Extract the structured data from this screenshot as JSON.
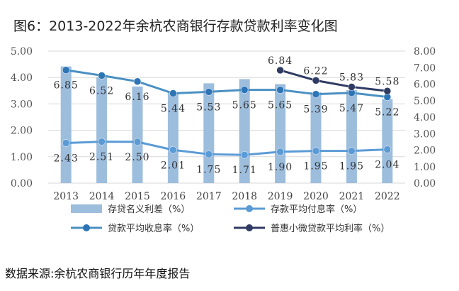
{
  "title": "图6：2013-2022年余杭农商银行存款贷款利率变化图",
  "source": "数据来源:余杭农商银行历年年度报告",
  "chart_data": {
    "type": "bar",
    "categories": [
      "2013",
      "2014",
      "2015",
      "2016",
      "2017",
      "2018",
      "2019",
      "2020",
      "2021",
      "2022"
    ],
    "y_left": {
      "min": 0,
      "max": 5,
      "step": 1,
      "tick_labels": [
        "0.00",
        "1.00",
        "2.00",
        "3.00",
        "4.00",
        "5.00"
      ]
    },
    "y_right": {
      "min": 0,
      "max": 8,
      "step": 1,
      "tick_labels": [
        "0.00",
        "1.00",
        "2.00",
        "3.00",
        "4.00",
        "5.00",
        "6.00",
        "7.00",
        "8.00"
      ]
    },
    "series": [
      {
        "name": "存贷名义利差（%）",
        "kind": "bar",
        "axis": "left",
        "color": "#9dbddd",
        "values": [
          4.42,
          4.01,
          3.66,
          3.43,
          3.78,
          3.94,
          3.75,
          3.44,
          3.52,
          3.18
        ],
        "show_labels": false
      },
      {
        "name": "存款平均付息率（%）",
        "kind": "line",
        "axis": "right",
        "color": "#5b9bd5",
        "marker_color": "#5b9bd5",
        "values": [
          2.43,
          2.51,
          2.5,
          2.01,
          1.75,
          1.71,
          1.9,
          1.95,
          1.95,
          2.04
        ],
        "labels": [
          "2.43",
          "2.51",
          "2.50",
          "2.01",
          "1.75",
          "1.71",
          "1.90",
          "1.95",
          "1.95",
          "2.04"
        ]
      },
      {
        "name": "贷款平均收息率（%）",
        "kind": "line",
        "axis": "right",
        "color": "#4a90c2",
        "marker_color": "#2e75b6",
        "values": [
          6.85,
          6.52,
          6.16,
          5.44,
          5.53,
          5.65,
          5.65,
          5.39,
          5.47,
          5.22
        ],
        "labels": [
          "6.85",
          "6.52",
          "6.16",
          "5.44",
          "5.53",
          "5.65",
          "5.65",
          "5.39",
          "5.47",
          "5.22"
        ]
      },
      {
        "name": "普惠小微贷款平均利率（%）",
        "kind": "line",
        "axis": "right",
        "color": "#2f3b63",
        "marker_color": "#2f3b63",
        "start_index": 6,
        "values": [
          null,
          null,
          null,
          null,
          null,
          null,
          6.84,
          6.22,
          5.83,
          5.58
        ],
        "labels": [
          null,
          null,
          null,
          null,
          null,
          null,
          "6.84",
          "6.22",
          "5.83",
          "5.58"
        ]
      }
    ]
  }
}
